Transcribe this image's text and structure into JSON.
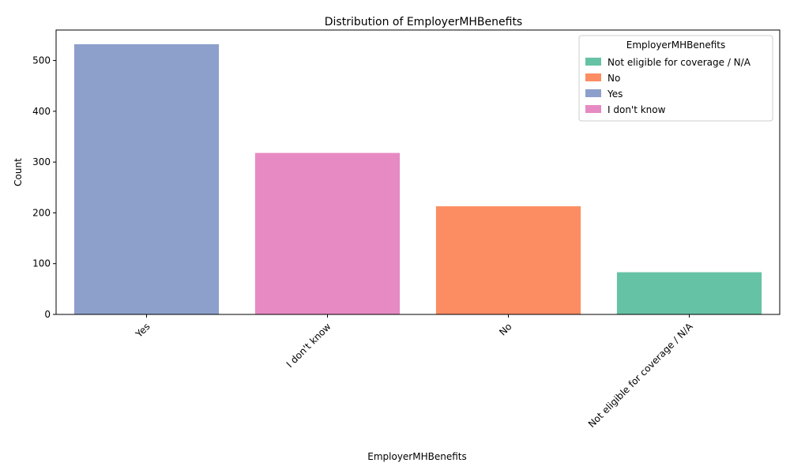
{
  "chart_data": {
    "type": "bar",
    "title": "Distribution of EmployerMHBenefits",
    "xlabel": "EmployerMHBenefits",
    "ylabel": "Count",
    "categories": [
      "Yes",
      "I don't know",
      "No",
      "Not eligible for coverage / N/A"
    ],
    "values": [
      532,
      318,
      213,
      83
    ],
    "colors": [
      "#8da0cb",
      "#e78ac3",
      "#fc8d62",
      "#66c2a5"
    ],
    "ylim": [
      0,
      560
    ],
    "yticks": [
      0,
      100,
      200,
      300,
      400,
      500
    ],
    "grid": false,
    "legend": {
      "title": "EmployerMHBenefits",
      "placement": "top-right",
      "entries": [
        {
          "label": "Not eligible for coverage / N/A",
          "color": "#66c2a5"
        },
        {
          "label": "No",
          "color": "#fc8d62"
        },
        {
          "label": "Yes",
          "color": "#8da0cb"
        },
        {
          "label": "I don't know",
          "color": "#e78ac3"
        }
      ]
    }
  }
}
